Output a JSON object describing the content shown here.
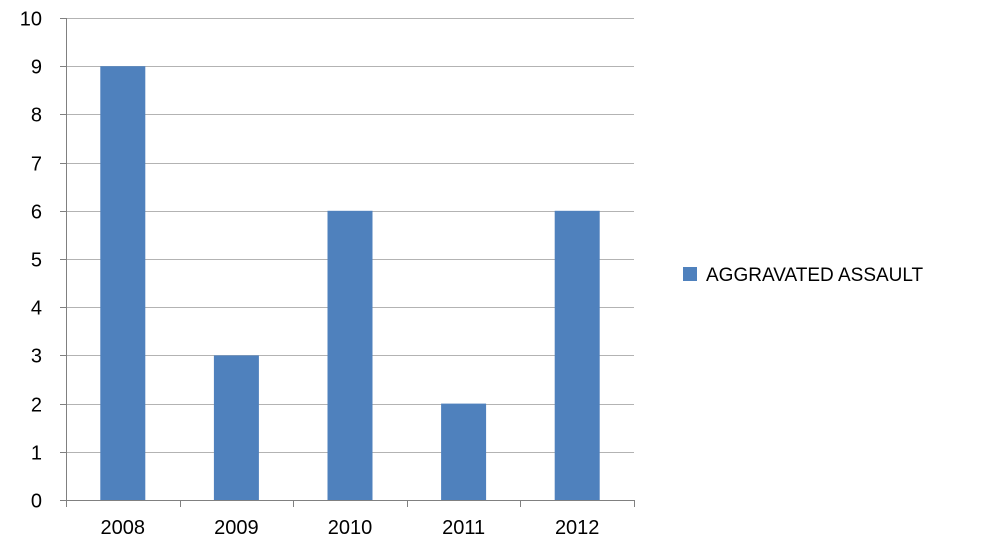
{
  "chart_data": {
    "type": "bar",
    "categories": [
      "2008",
      "2009",
      "2010",
      "2011",
      "2012"
    ],
    "series": [
      {
        "name": "AGGRAVATED ASSAULT",
        "values": [
          9,
          3,
          6,
          2,
          6
        ],
        "color": "#4f81bd"
      }
    ],
    "title": "",
    "xlabel": "",
    "ylabel": "",
    "ylim": [
      0,
      10
    ],
    "yticks": [
      0,
      1,
      2,
      3,
      4,
      5,
      6,
      7,
      8,
      9,
      10
    ],
    "grid": true,
    "legend_position": "right",
    "gridline_color": "#b3b3b3",
    "axis_color": "#808080"
  }
}
